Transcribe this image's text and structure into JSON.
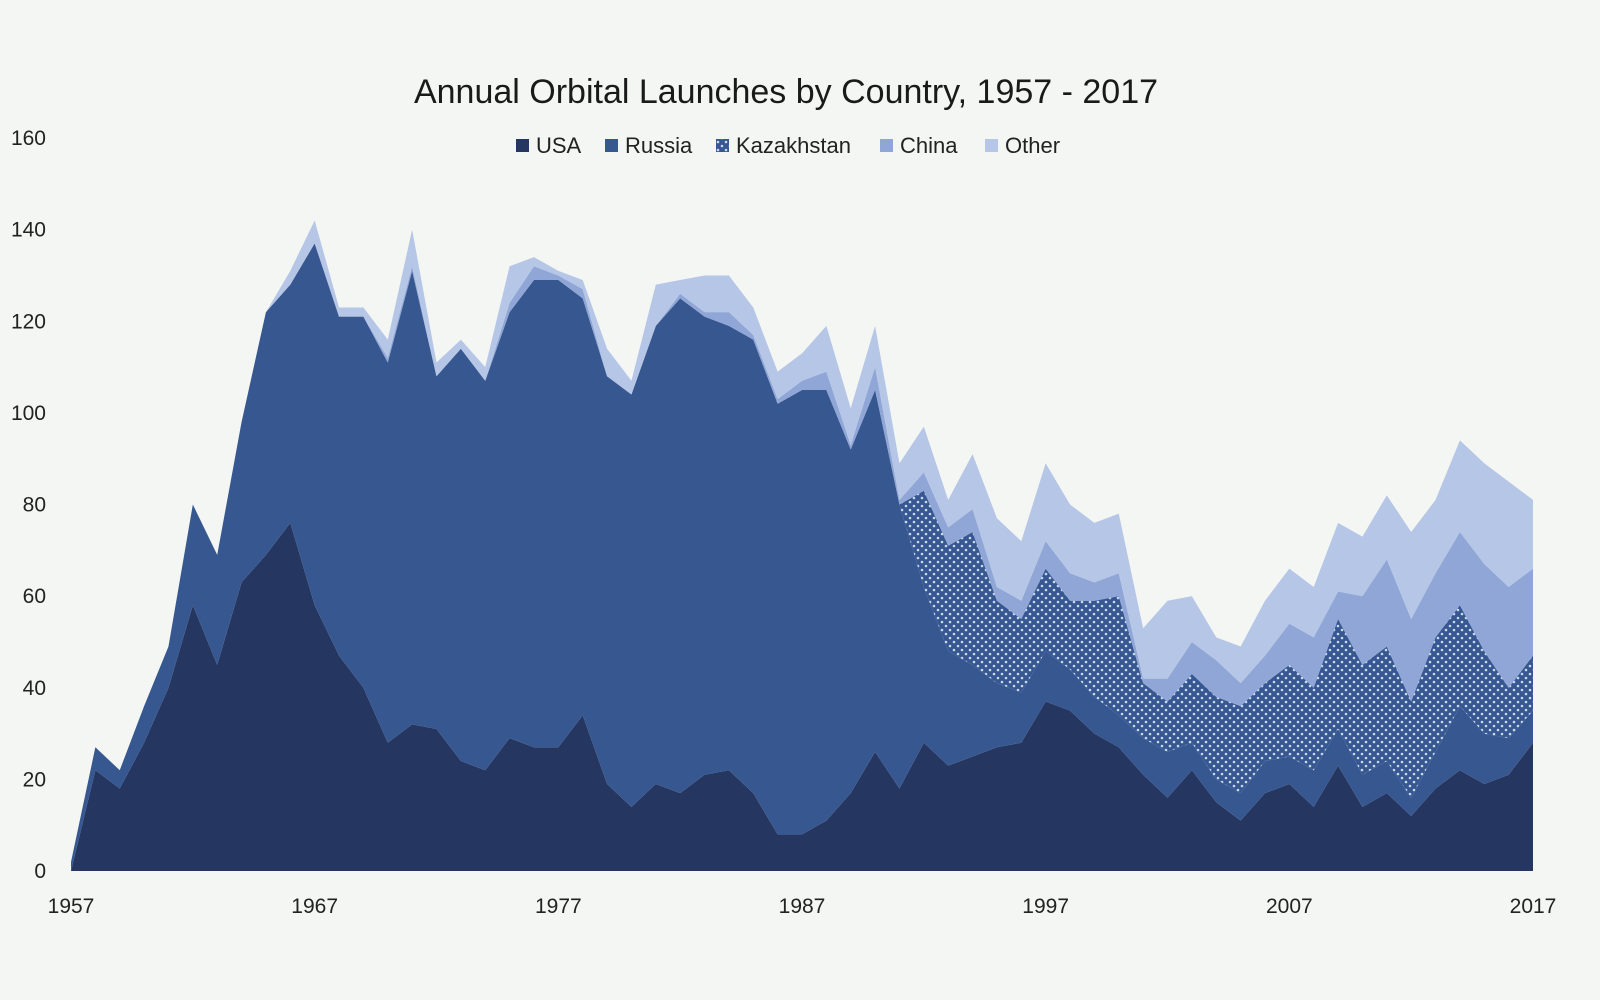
{
  "chart_data": {
    "type": "area",
    "stacked": true,
    "title": "Annual Orbital Launches by Country, 1957 - 2017",
    "xlabel": "",
    "ylabel": "",
    "ylim": [
      0,
      160
    ],
    "xlim": [
      1957,
      2017
    ],
    "grid": false,
    "legend_position": "top-center",
    "y_ticks": [
      "0",
      "20",
      "40",
      "60",
      "80",
      "100",
      "120",
      "140",
      "160"
    ],
    "x_ticks": [
      "1957",
      "1967",
      "1977",
      "1987",
      "1997",
      "2007",
      "2017"
    ],
    "x_start": 1957,
    "series": [
      {
        "name": "USA",
        "color": "#253760",
        "pattern": false,
        "values": [
          0,
          22,
          18,
          28,
          40,
          58,
          45,
          63,
          69,
          76,
          58,
          47,
          40,
          28,
          32,
          31,
          24,
          22,
          29,
          27,
          27,
          34,
          19,
          14,
          19,
          17,
          21,
          22,
          17,
          8,
          8,
          11,
          17,
          26,
          18,
          28,
          23,
          25,
          27,
          28,
          37,
          35,
          30,
          27,
          21,
          16,
          22,
          15,
          11,
          17,
          19,
          14,
          23,
          14,
          17,
          12,
          18,
          22,
          19,
          21,
          28
        ]
      },
      {
        "name": "Russia",
        "color": "#375790",
        "pattern": false,
        "values": [
          2,
          5,
          4,
          8,
          9,
          22,
          24,
          35,
          53,
          52,
          79,
          74,
          81,
          83,
          99,
          77,
          90,
          85,
          93,
          102,
          102,
          91,
          89,
          90,
          100,
          108,
          100,
          97,
          99,
          94,
          97,
          94,
          75,
          79,
          62,
          34,
          25,
          20,
          14,
          11,
          11,
          9,
          8,
          7,
          8,
          10,
          6,
          5,
          6,
          7,
          6,
          8,
          8,
          7,
          7,
          4,
          8,
          14,
          11,
          8,
          7
        ]
      },
      {
        "name": "Kazakhstan",
        "color": "#375790",
        "pattern": true,
        "values": [
          0,
          0,
          0,
          0,
          0,
          0,
          0,
          0,
          0,
          0,
          0,
          0,
          0,
          0,
          0,
          0,
          0,
          0,
          0,
          0,
          0,
          0,
          0,
          0,
          0,
          0,
          0,
          0,
          0,
          0,
          0,
          0,
          0,
          0,
          0,
          21,
          23,
          29,
          18,
          16,
          18,
          15,
          21,
          26,
          12,
          11,
          15,
          18,
          19,
          17,
          20,
          18,
          24,
          24,
          25,
          21,
          25,
          22,
          18,
          11,
          12
        ]
      },
      {
        "name": "China",
        "color": "#8fa6d6",
        "pattern": false,
        "values": [
          0,
          0,
          0,
          0,
          0,
          0,
          0,
          0,
          0,
          0,
          0,
          0,
          0,
          1,
          1,
          0,
          0,
          0,
          2,
          3,
          1,
          2,
          0,
          0,
          0,
          1,
          1,
          3,
          1,
          1,
          2,
          4,
          1,
          5,
          1,
          4,
          4,
          5,
          3,
          4,
          6,
          6,
          4,
          5,
          1,
          5,
          7,
          8,
          5,
          6,
          9,
          11,
          6,
          15,
          19,
          18,
          14,
          16,
          19,
          22,
          19
        ]
      },
      {
        "name": "Other",
        "color": "#b6c6e6",
        "pattern": false,
        "values": [
          0,
          0,
          0,
          0,
          0,
          0,
          0,
          0,
          0,
          3,
          5,
          2,
          2,
          4,
          8,
          3,
          2,
          3,
          8,
          2,
          1,
          2,
          6,
          3,
          9,
          3,
          8,
          8,
          6,
          6,
          6,
          10,
          8,
          9,
          8,
          10,
          6,
          12,
          15,
          13,
          17,
          15,
          13,
          13,
          11,
          17,
          10,
          5,
          8,
          12,
          12,
          11,
          15,
          13,
          14,
          19,
          16,
          20,
          22,
          23,
          15
        ]
      }
    ]
  }
}
